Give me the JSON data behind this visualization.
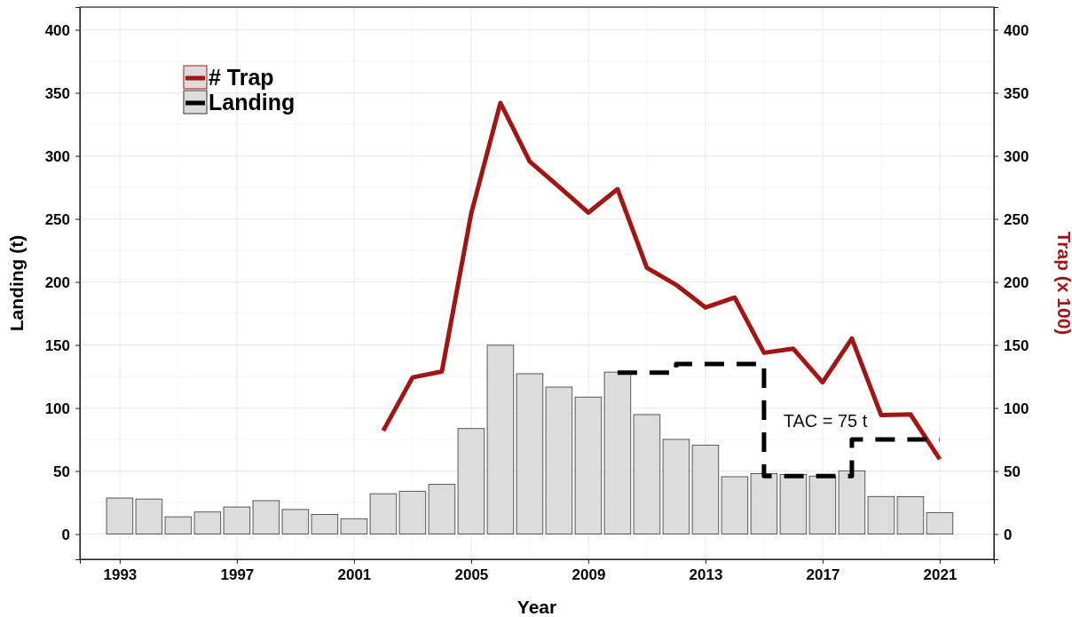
{
  "chart_data": {
    "type": "bar",
    "xlabel": "Year",
    "ylabel": "Landing (t)",
    "y2label": "Trap (x 100)",
    "x": [
      1993,
      1994,
      1995,
      1996,
      1997,
      1998,
      1999,
      2000,
      2001,
      2002,
      2003,
      2004,
      2005,
      2006,
      2007,
      2008,
      2009,
      2010,
      2011,
      2012,
      2013,
      2014,
      2015,
      2016,
      2017,
      2018,
      2019,
      2020,
      2021
    ],
    "series": [
      {
        "name": "Landing",
        "color": "#dcdcdc",
        "values": [
          28.6,
          27.8,
          13.7,
          17.5,
          21.5,
          26.5,
          19.5,
          15.5,
          12.2,
          32,
          34,
          39.4,
          83.7,
          149.8,
          127.2,
          116.6,
          108.7,
          128.5,
          94.8,
          75.1,
          70.6,
          45.5,
          47.9,
          47.2,
          46,
          50.2,
          29.8,
          29.6,
          17.1
        ]
      },
      {
        "name": "# Trap",
        "type": "line",
        "axis": "y2",
        "color": "#a31515",
        "values": [
          null,
          null,
          null,
          null,
          null,
          null,
          null,
          null,
          null,
          82,
          124.3,
          128.9,
          254,
          342,
          295.6,
          275.5,
          255,
          273.6,
          211.3,
          197.7,
          179.8,
          187.6,
          143.8,
          147,
          120.4,
          155.1,
          94.4,
          95,
          59.4
        ]
      },
      {
        "type": "step",
        "color": "#000000",
        "line_style": "dashed",
        "x": [
          2010,
          2012,
          2015,
          2018,
          2021
        ],
        "values": [
          128,
          135,
          46,
          75,
          75
        ]
      }
    ],
    "annotations": [
      "TAC = 75 t"
    ],
    "xlim": [
      1991.64,
      2022.85
    ],
    "xticks": [
      1993,
      1997,
      2001,
      2005,
      2009,
      2013,
      2017,
      2021
    ],
    "ylim": [
      -20,
      418
    ],
    "yticks": [
      0,
      50,
      100,
      150,
      200,
      250,
      300,
      350,
      400
    ],
    "y2lim": [
      -20,
      418
    ],
    "y2ticks": [
      0,
      50,
      100,
      150,
      200,
      250,
      300,
      350,
      400
    ],
    "grid": true,
    "legend": "top left"
  }
}
